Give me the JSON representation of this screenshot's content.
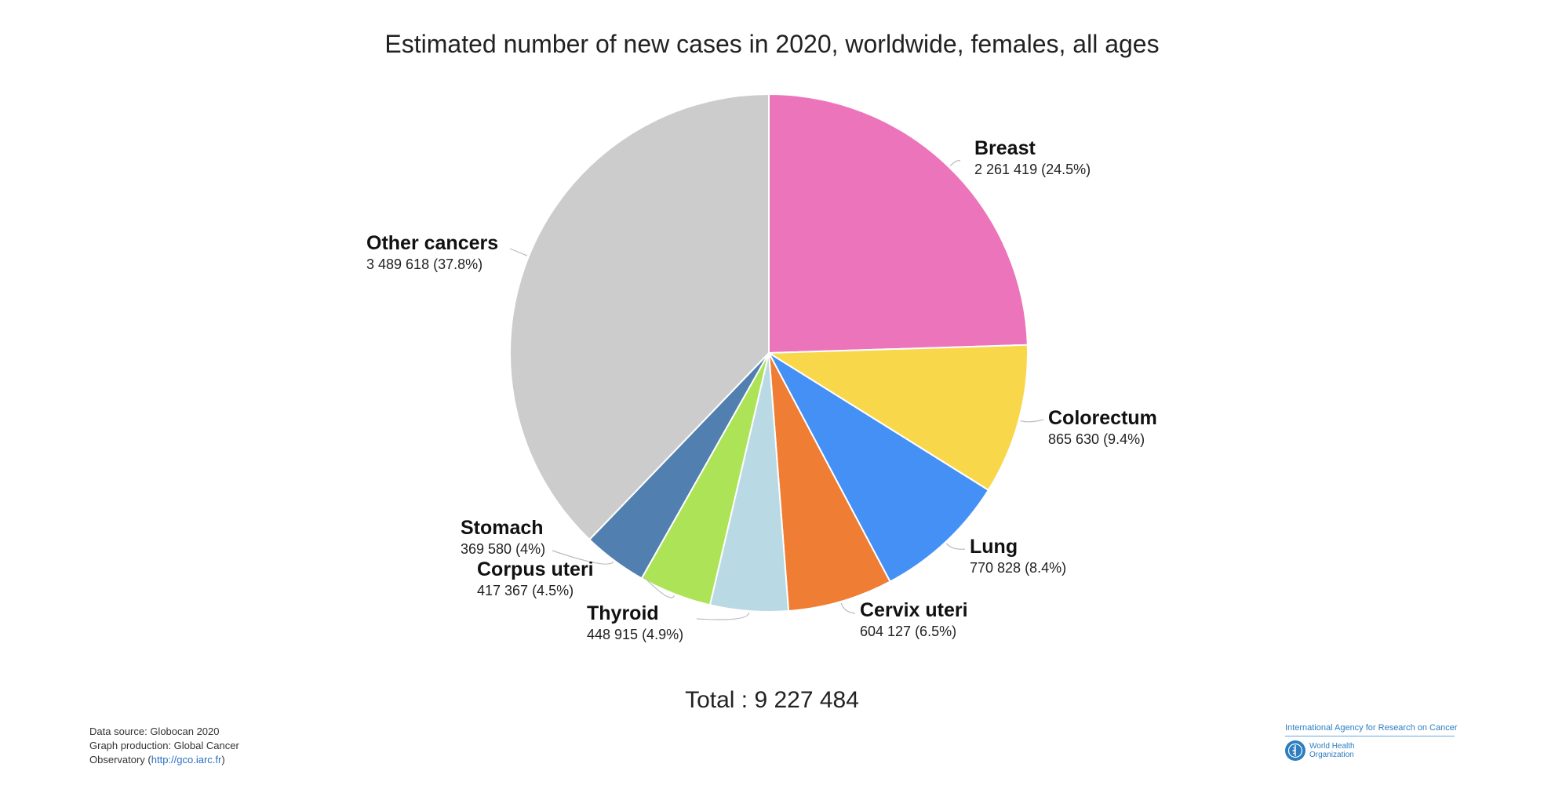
{
  "chart_data": {
    "type": "pie",
    "title": "Estimated number of new cases in 2020, worldwide, females, all ages",
    "slices": [
      {
        "name": "Breast",
        "value": 2261419,
        "value_label": "2 261 419 (24.5%)",
        "color": "#EC74BA"
      },
      {
        "name": "Colorectum",
        "value": 865630,
        "value_label": "865 630 (9.4%)",
        "color": "#F9D74A"
      },
      {
        "name": "Lung",
        "value": 770828,
        "value_label": "770 828 (8.4%)",
        "color": "#4490F5"
      },
      {
        "name": "Cervix uteri",
        "value": 604127,
        "value_label": "604 127 (6.5%)",
        "color": "#EF7D33"
      },
      {
        "name": "Thyroid",
        "value": 448915,
        "value_label": "448 915 (4.9%)",
        "color": "#B9DAE4"
      },
      {
        "name": "Corpus uteri",
        "value": 417367,
        "value_label": "417 367 (4.5%)",
        "color": "#ADE356"
      },
      {
        "name": "Stomach",
        "value": 369580,
        "value_label": "369 580 (4%)",
        "color": "#517FAF"
      },
      {
        "name": "Other cancers",
        "value": 3489618,
        "value_label": "3 489 618 (37.8%)",
        "color": "#CCCCCC"
      }
    ],
    "total_label": "Total : 9 227 484",
    "start_angle": "12 o'clock",
    "direction": "clockwise"
  },
  "footer": {
    "source_line1": "Data source: Globocan 2020",
    "source_line2": "Graph production: Global Cancer",
    "source_line3_prefix": "Observatory (",
    "source_link": "http://gco.iarc.fr",
    "source_line3_suffix": ")"
  },
  "logos": {
    "iarc": "International Agency for Research on Cancer",
    "who_line1": "World Health",
    "who_line2": "Organization",
    "who_icon": "who-emblem-icon"
  }
}
